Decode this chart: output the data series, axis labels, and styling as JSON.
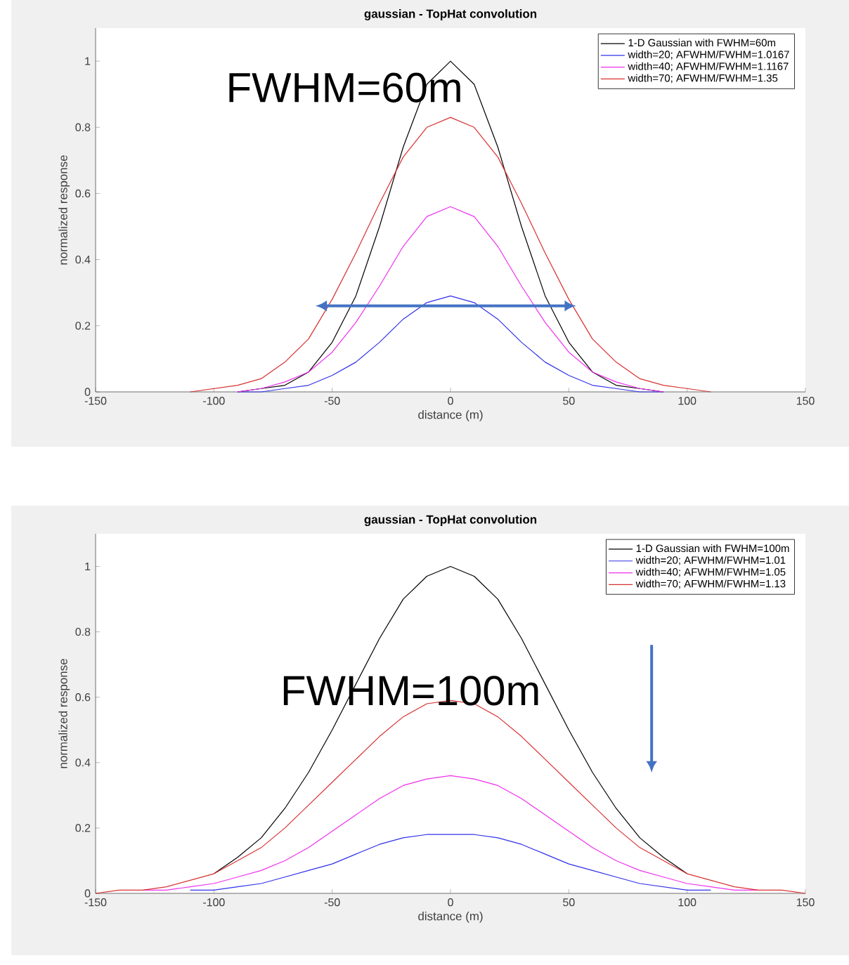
{
  "chart_data": [
    {
      "type": "line",
      "title": "gaussian - TopHat convolution",
      "xlabel": "distance (m)",
      "ylabel": "normalized response",
      "x": [
        -110,
        -100,
        -90,
        -80,
        -70,
        -60,
        -50,
        -40,
        -30,
        -20,
        -10,
        0,
        10,
        20,
        30,
        40,
        50,
        60,
        70,
        80,
        90,
        100,
        110
      ],
      "series": [
        {
          "name": "1-D Gaussian with FWHM=60m",
          "color": "#000000",
          "values": [
            null,
            null,
            0,
            0.01,
            0.02,
            0.06,
            0.15,
            0.29,
            0.5,
            0.74,
            0.93,
            1,
            0.93,
            0.74,
            0.5,
            0.29,
            0.15,
            0.06,
            0.02,
            0.01,
            0,
            null,
            null
          ]
        },
        {
          "name": "width=20; AFWHM/FWHM=1.0167",
          "color": "#3030e8",
          "values": [
            null,
            null,
            0,
            0,
            0.01,
            0.02,
            0.05,
            0.09,
            0.15,
            0.22,
            0.27,
            0.29,
            0.27,
            0.22,
            0.15,
            0.09,
            0.05,
            0.02,
            0.01,
            0,
            0,
            null,
            null
          ]
        },
        {
          "name": "width=40; AFWHM/FWHM=1.1167",
          "color": "#ee30ee",
          "values": [
            null,
            null,
            0,
            0.01,
            0.03,
            0.06,
            0.12,
            0.21,
            0.32,
            0.44,
            0.53,
            0.56,
            0.53,
            0.44,
            0.32,
            0.21,
            0.12,
            0.06,
            0.03,
            0.01,
            0,
            null,
            null
          ]
        },
        {
          "name": "width=70; AFWHM/FWHM=1.35",
          "color": "#d83030",
          "values": [
            0,
            0.01,
            0.02,
            0.04,
            0.09,
            0.16,
            0.28,
            0.42,
            0.57,
            0.71,
            0.8,
            0.83,
            0.8,
            0.71,
            0.57,
            0.42,
            0.28,
            0.16,
            0.09,
            0.04,
            0.02,
            0.01,
            0
          ]
        }
      ],
      "xlim": [
        -150,
        150
      ],
      "ylim": [
        0,
        1.1
      ],
      "xticks": [
        -150,
        -100,
        -50,
        0,
        50,
        100,
        150
      ],
      "yticks": [
        0,
        0.2,
        0.4,
        0.6,
        0.8,
        1
      ],
      "legend": "top right",
      "annotations": [
        "FWHM=60m"
      ]
    },
    {
      "type": "line",
      "title": "gaussian - TopHat convolution",
      "xlabel": "distance (m)",
      "ylabel": "normalized response",
      "x": [
        -150,
        -140,
        -130,
        -120,
        -110,
        -100,
        -90,
        -80,
        -70,
        -60,
        -50,
        -40,
        -30,
        -20,
        -10,
        0,
        10,
        20,
        30,
        40,
        50,
        60,
        70,
        80,
        90,
        100,
        110,
        120,
        130,
        140,
        150
      ],
      "series": [
        {
          "name": "1-D Gaussian with FWHM=100m",
          "color": "#000000",
          "values": [
            null,
            null,
            null,
            null,
            null,
            0.06,
            0.11,
            0.17,
            0.26,
            0.37,
            0.5,
            0.64,
            0.78,
            0.9,
            0.97,
            1,
            0.97,
            0.9,
            0.78,
            0.64,
            0.5,
            0.37,
            0.26,
            0.17,
            0.11,
            0.06,
            null,
            null,
            null,
            null,
            null
          ]
        },
        {
          "name": "width=20; AFWHM/FWHM=1.01",
          "color": "#3030e8",
          "values": [
            null,
            null,
            null,
            null,
            0.01,
            0.01,
            0.02,
            0.03,
            0.05,
            0.07,
            0.09,
            0.12,
            0.15,
            0.17,
            0.18,
            0.18,
            0.18,
            0.17,
            0.15,
            0.12,
            0.09,
            0.07,
            0.05,
            0.03,
            0.02,
            0.01,
            0.01,
            null,
            null,
            null,
            null
          ]
        },
        {
          "name": "width=40; AFWHM/FWHM=1.05",
          "color": "#ee30ee",
          "values": [
            null,
            null,
            0.01,
            0.01,
            0.02,
            0.03,
            0.05,
            0.07,
            0.1,
            0.14,
            0.19,
            0.24,
            0.29,
            0.33,
            0.35,
            0.36,
            0.35,
            0.33,
            0.29,
            0.24,
            0.19,
            0.14,
            0.1,
            0.07,
            0.05,
            0.03,
            0.02,
            0.01,
            0.01,
            null,
            null
          ]
        },
        {
          "name": "width=70; AFWHM/FWHM=1.13",
          "color": "#d83030",
          "values": [
            0,
            0.01,
            0.01,
            0.02,
            0.04,
            0.06,
            0.1,
            0.14,
            0.2,
            0.27,
            0.34,
            0.41,
            0.48,
            0.54,
            0.58,
            0.59,
            0.58,
            0.54,
            0.48,
            0.41,
            0.34,
            0.27,
            0.2,
            0.14,
            0.1,
            0.06,
            0.04,
            0.02,
            0.01,
            0.01,
            0
          ]
        }
      ],
      "xlim": [
        -150,
        150
      ],
      "ylim": [
        0,
        1.1
      ],
      "xticks": [
        -150,
        -100,
        -50,
        0,
        50,
        100,
        150
      ],
      "yticks": [
        0,
        0.2,
        0.4,
        0.6,
        0.8,
        1
      ],
      "legend": "top right",
      "annotations": [
        "FWHM=100m"
      ]
    }
  ]
}
